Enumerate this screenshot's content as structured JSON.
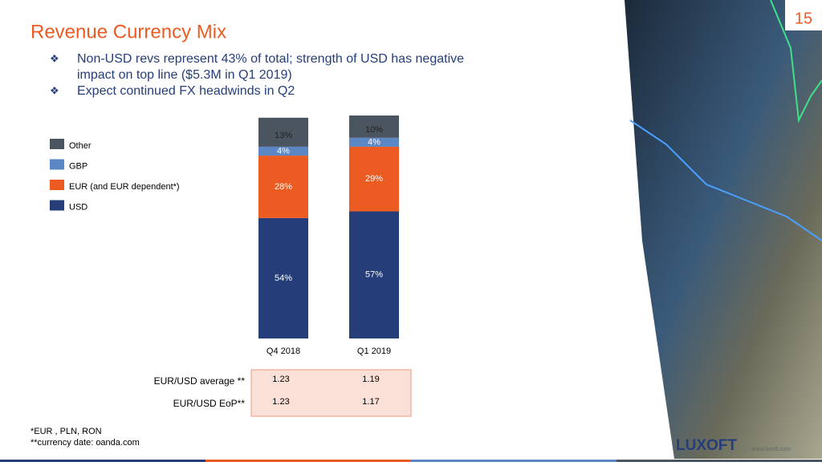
{
  "slide_number": "15",
  "title": "Revenue Currency Mix",
  "bullets": [
    "Non-USD revs represent 43% of total; strength of USD has negative",
    "impact on top line ($5.3M in Q1 2019)",
    "Expect continued FX headwinds in Q2"
  ],
  "chart_data": {
    "type": "bar",
    "stacked": true,
    "categories": [
      "Q4 2018",
      "Q1 2019"
    ],
    "series": [
      {
        "name": "USD",
        "color": "#253e7a",
        "values": [
          54,
          57
        ],
        "value_labels": [
          "54%",
          "57%"
        ]
      },
      {
        "name": "EUR (and EUR dependent*)",
        "color": "#eb5b22",
        "values": [
          28,
          29
        ],
        "value_labels": [
          "28%",
          "29%"
        ]
      },
      {
        "name": "GBP",
        "color": "#5b87c4",
        "values": [
          4,
          4
        ],
        "value_labels": [
          "4%",
          "4%"
        ]
      },
      {
        "name": "Other",
        "color": "#4b5560",
        "values": [
          13,
          10
        ],
        "value_labels": [
          "13%",
          "10%"
        ]
      }
    ]
  },
  "table": {
    "rows": [
      [
        "EUR/USD average **",
        "1.23",
        "1.19"
      ],
      [
        "EUR/USD EoP**",
        "1.23",
        "1.17"
      ]
    ]
  },
  "footnotes": [
    "*EUR , PLN, RON",
    "**currency date: oanda.com"
  ],
  "logo": "LUXOFT",
  "url": "www.luxoft.com"
}
